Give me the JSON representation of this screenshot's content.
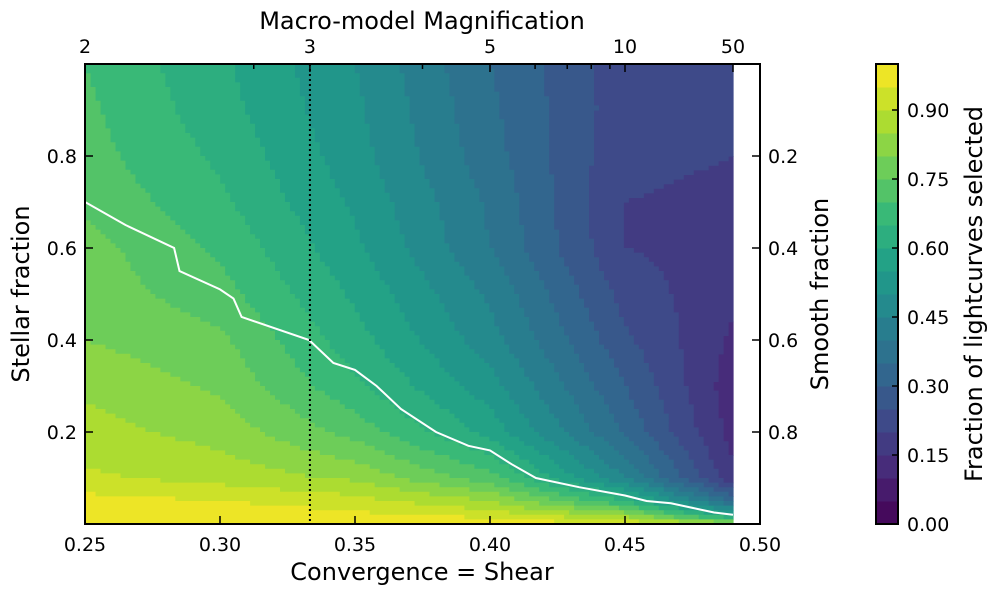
{
  "chart_data": {
    "type": "heatmap",
    "subtype": "filled-contour",
    "xlabel": "Convergence = Shear",
    "ylabel": "Stellar fraction",
    "top_xlabel": "Macro-model Magnification",
    "right_ylabel": "Smooth fraction",
    "colorbar_label": "Fraction of lightcurves selected",
    "xlim": [
      0.25,
      0.5
    ],
    "ylim": [
      0.0,
      1.0
    ],
    "x_ticks": [
      0.25,
      0.3,
      0.35,
      0.4,
      0.45,
      0.5
    ],
    "x_tick_labels": [
      "0.25",
      "0.30",
      "0.35",
      "0.40",
      "0.45",
      "0.50"
    ],
    "y_ticks": [
      0.2,
      0.4,
      0.6,
      0.8
    ],
    "y_tick_labels": [
      "0.2",
      "0.4",
      "0.6",
      "0.8"
    ],
    "top_ticks": [
      {
        "label": "2",
        "x": 0.25
      },
      {
        "label": "3",
        "x": 0.3333
      },
      {
        "label": "5",
        "x": 0.4
      },
      {
        "label": "10",
        "x": 0.45
      },
      {
        "label": "50",
        "x": 0.49
      }
    ],
    "top_minor_ticks": [
      0.3125,
      0.375,
      0.4167,
      0.4286,
      0.4375,
      0.4444
    ],
    "right_ticks": [
      {
        "label": "0.2",
        "y": 0.8
      },
      {
        "label": "0.4",
        "y": 0.6
      },
      {
        "label": "0.6",
        "y": 0.4
      },
      {
        "label": "0.8",
        "y": 0.2
      }
    ],
    "colorbar": {
      "min": 0.0,
      "max": 1.0,
      "levels": [
        0.0,
        0.05,
        0.1,
        0.15,
        0.2,
        0.25,
        0.3,
        0.35,
        0.4,
        0.45,
        0.5,
        0.55,
        0.6,
        0.65,
        0.7,
        0.75,
        0.8,
        0.85,
        0.9,
        0.95,
        1.0
      ],
      "ticks": [
        0.0,
        0.15,
        0.3,
        0.45,
        0.6,
        0.75,
        0.9
      ],
      "tick_labels": [
        "0.00",
        "0.15",
        "0.30",
        "0.45",
        "0.60",
        "0.75",
        "0.90"
      ],
      "colormap": "viridis"
    },
    "data_x_max": 0.49,
    "data_y_min": 0.0,
    "data_y_max": 1.0,
    "vertical_line": {
      "x": 0.3333,
      "style": "dotted",
      "color": "#000000"
    },
    "selection_contour": {
      "color": "#ffffff",
      "x": [
        0.25,
        0.265,
        0.283,
        0.285,
        0.3,
        0.305,
        0.308,
        0.333,
        0.342,
        0.35,
        0.358,
        0.367,
        0.38,
        0.392,
        0.4,
        0.408,
        0.417,
        0.433,
        0.45,
        0.458,
        0.467,
        0.475,
        0.483,
        0.49
      ],
      "y": [
        0.7,
        0.65,
        0.6,
        0.55,
        0.51,
        0.49,
        0.45,
        0.4,
        0.35,
        0.335,
        0.3,
        0.25,
        0.2,
        0.17,
        0.16,
        0.13,
        0.1,
        0.08,
        0.062,
        0.05,
        0.045,
        0.035,
        0.025,
        0.02
      ]
    },
    "field_model": {
      "description": "Fraction of lightcurves selected as a function of convergence (=shear) and stellar fraction",
      "x_grid": [
        0.25,
        0.3,
        0.35,
        0.4,
        0.45,
        0.49
      ],
      "y_grid": [
        0.0,
        0.02,
        0.05,
        0.1,
        0.2,
        0.3,
        0.4,
        0.5,
        0.6,
        0.7,
        0.8,
        0.9,
        1.0
      ],
      "z": [
        [
          1.0,
          0.99,
          0.97,
          0.91,
          0.87,
          0.84,
          0.8,
          0.78,
          0.77,
          0.74,
          0.72,
          0.71,
          0.7
        ],
        [
          1.0,
          0.99,
          0.95,
          0.88,
          0.83,
          0.79,
          0.76,
          0.72,
          0.69,
          0.66,
          0.64,
          0.62,
          0.61
        ],
        [
          1.0,
          0.96,
          0.92,
          0.84,
          0.73,
          0.66,
          0.62,
          0.59,
          0.56,
          0.54,
          0.52,
          0.51,
          0.5
        ],
        [
          0.99,
          0.93,
          0.85,
          0.72,
          0.58,
          0.52,
          0.47,
          0.44,
          0.4,
          0.39,
          0.37,
          0.36,
          0.35
        ],
        [
          0.95,
          0.83,
          0.65,
          0.45,
          0.34,
          0.3,
          0.26,
          0.23,
          0.2,
          0.2,
          0.21,
          0.22,
          0.22
        ],
        [
          0.85,
          0.55,
          0.34,
          0.16,
          0.13,
          0.12,
          0.14,
          0.16,
          0.18,
          0.19,
          0.2,
          0.21,
          0.21
        ]
      ]
    }
  }
}
